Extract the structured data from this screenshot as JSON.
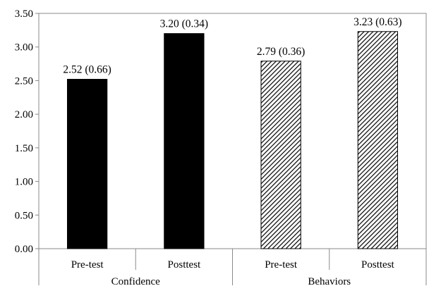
{
  "chart_data": {
    "type": "bar",
    "title": "",
    "xlabel": "",
    "ylabel": "",
    "ylim": [
      0,
      3.5
    ],
    "ytick_step": 0.5,
    "yticks": [
      "0.00",
      "0.50",
      "1.00",
      "1.50",
      "2.00",
      "2.50",
      "3.00",
      "3.50"
    ],
    "grid": false,
    "legend": "none",
    "groups": [
      {
        "label": "Confidence",
        "fill": "solid",
        "color": "#000000",
        "bars": [
          {
            "category": "Pre-test",
            "value": 2.52,
            "label": "2.52 (0.66)"
          },
          {
            "category": "Posttest",
            "value": 3.2,
            "label": "3.20 (0.34)"
          }
        ]
      },
      {
        "label": "Behaviors",
        "fill": "diagonal-hatch",
        "color": "#000000",
        "bars": [
          {
            "category": "Pre-test",
            "value": 2.79,
            "label": "2.79 (0.36)"
          },
          {
            "category": "Posttest",
            "value": 3.23,
            "label": "3.23 (0.63)"
          }
        ]
      }
    ]
  }
}
